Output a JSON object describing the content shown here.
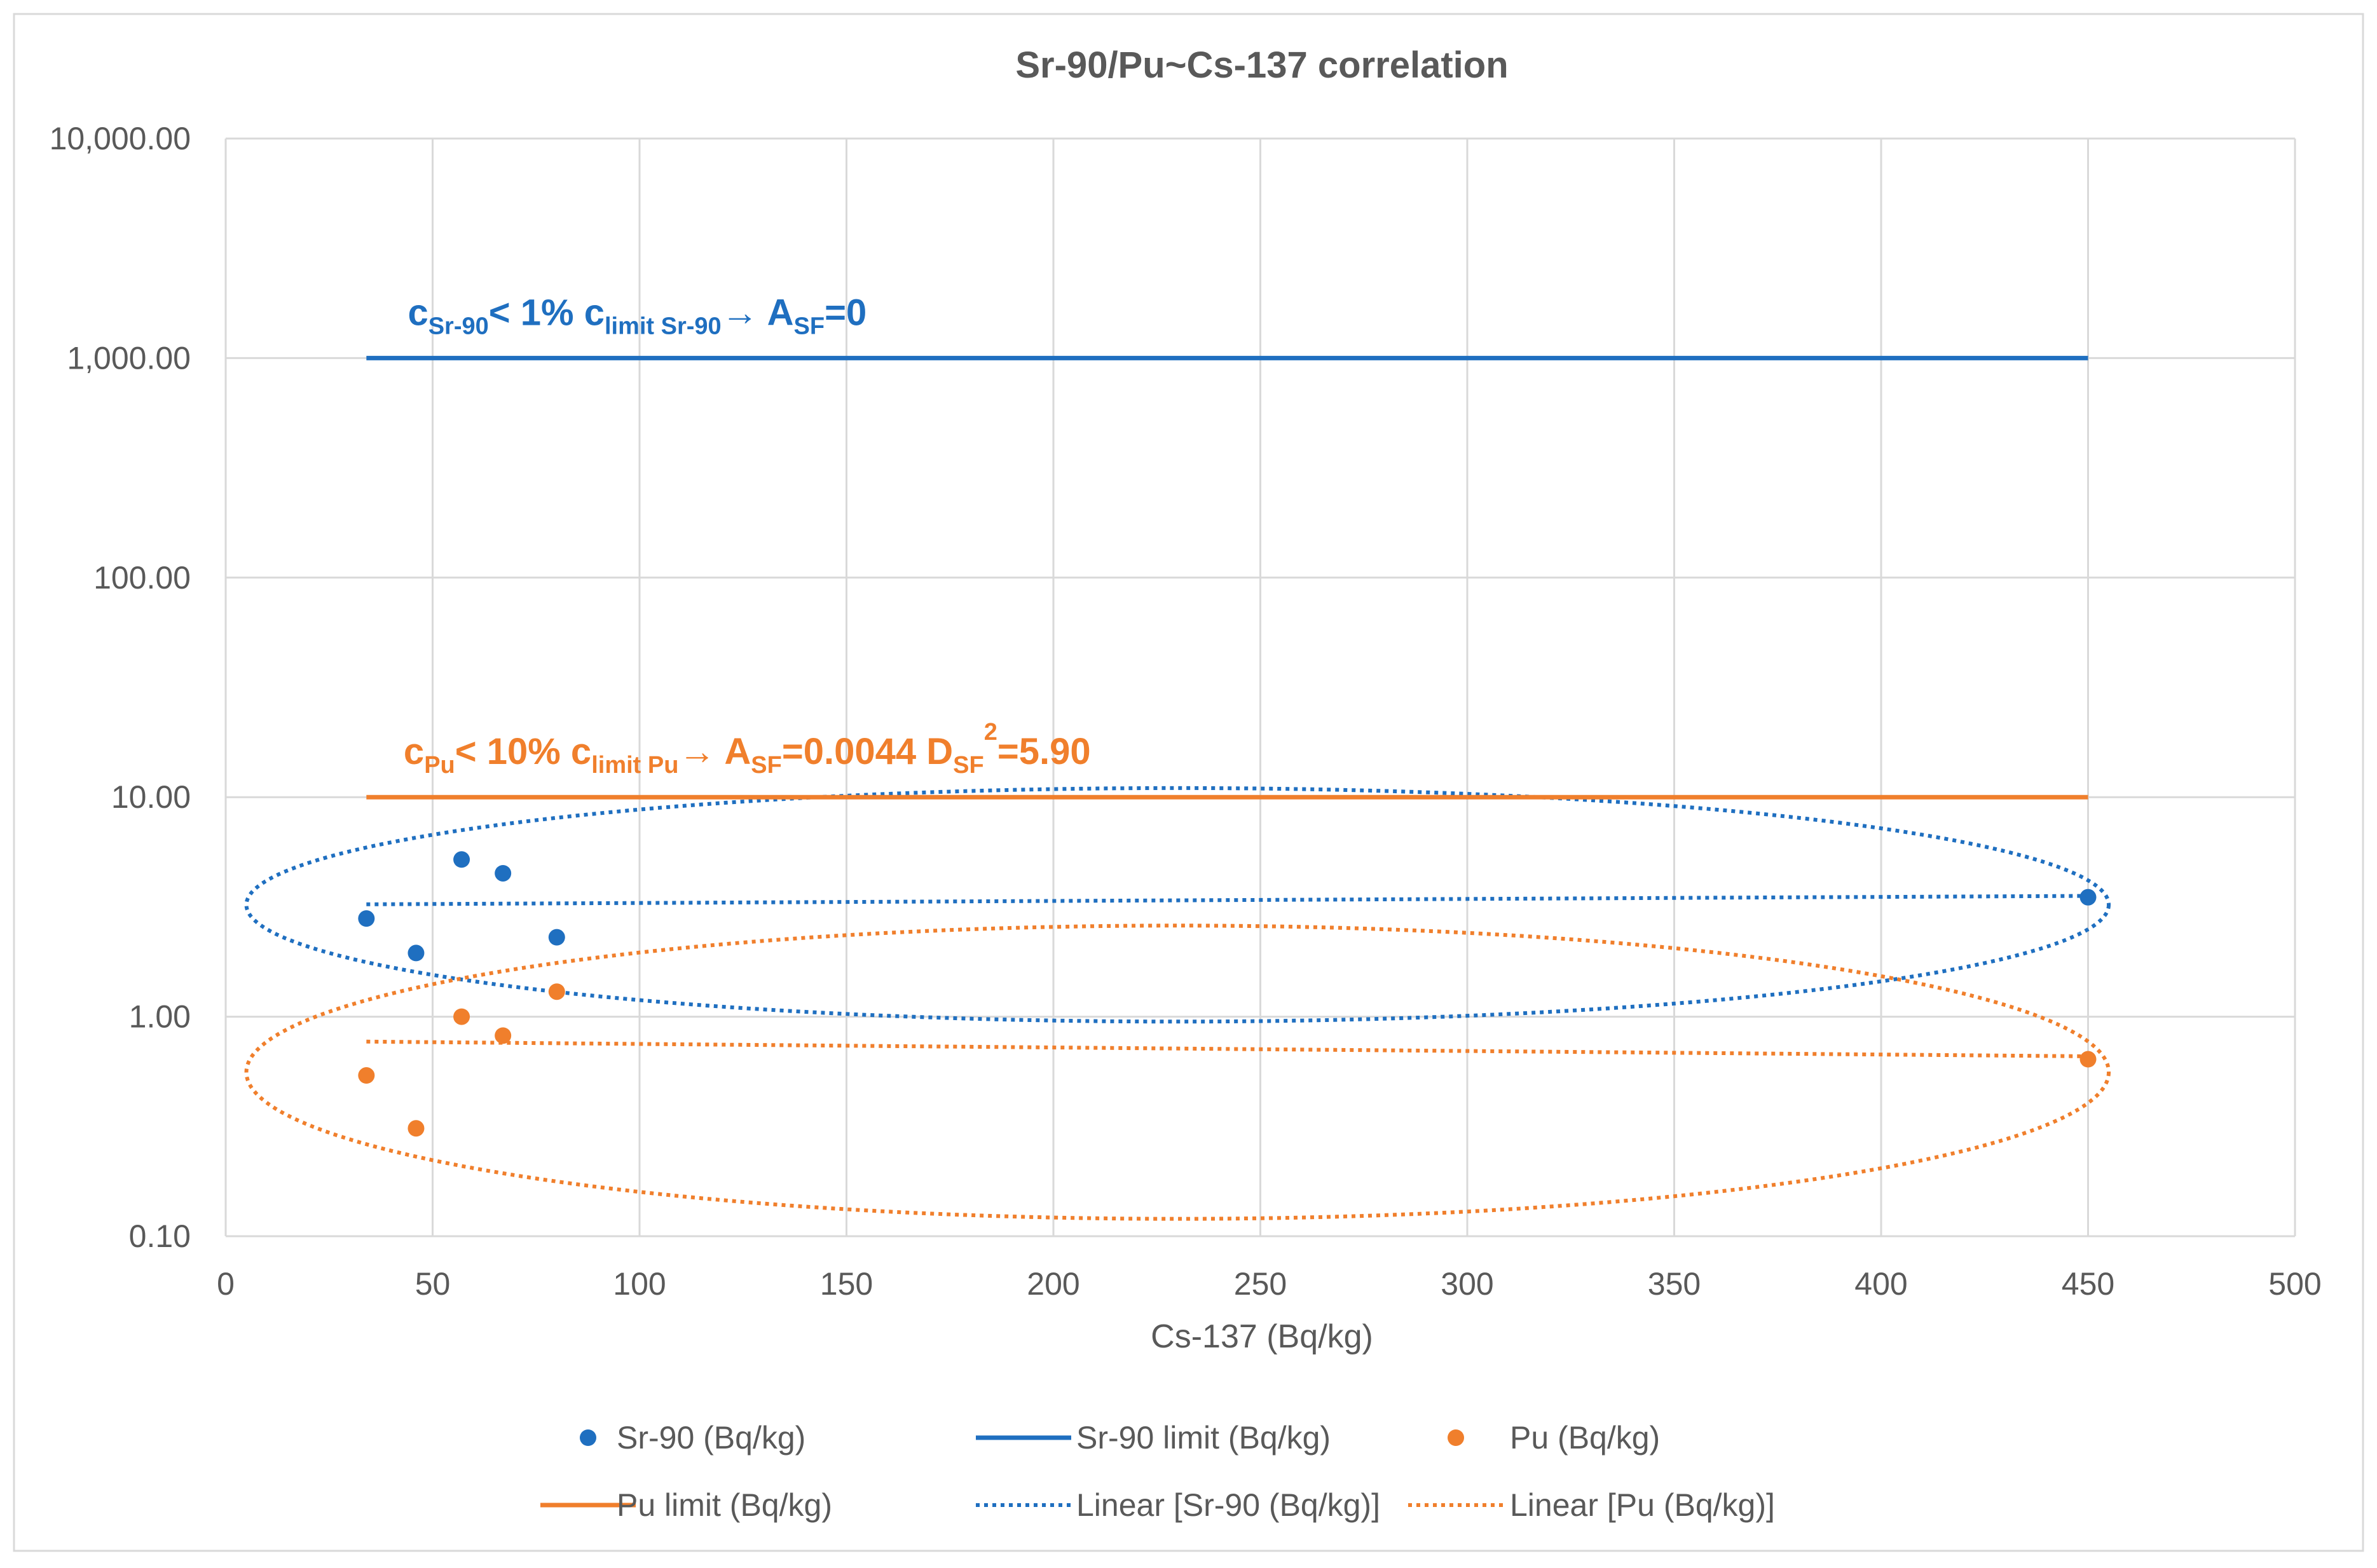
{
  "chart_data": {
    "type": "scatter",
    "title": "Sr-90/Pu~Cs-137 correlation",
    "xlabel": "Cs-137 (Bq/kg)",
    "ylabel": "",
    "xlim": [
      0,
      500
    ],
    "ylim": [
      0.1,
      10000
    ],
    "yscale": "log",
    "grid": true,
    "x_ticks": [
      "0",
      "50",
      "100",
      "150",
      "200",
      "250",
      "300",
      "350",
      "400",
      "450",
      "500"
    ],
    "x_tick_values": [
      0,
      50,
      100,
      150,
      200,
      250,
      300,
      350,
      400,
      450,
      500
    ],
    "y_ticks": [
      "0.10",
      "1.00",
      "10.00",
      "100.00",
      "1,000.00",
      "10,000.00"
    ],
    "y_tick_values": [
      0.1,
      1,
      10,
      100,
      1000,
      10000
    ],
    "colors": {
      "sr": "#1f6fc0",
      "pu": "#f07f2c",
      "grid": "#d9d9d9",
      "text": "#595959"
    },
    "series": [
      {
        "name": "Sr-90 (Bq/kg)",
        "kind": "scatter",
        "color": "#1f6fc0",
        "points": [
          [
            34,
            2.8
          ],
          [
            46,
            1.95
          ],
          [
            57,
            5.2
          ],
          [
            67,
            4.5
          ],
          [
            80,
            2.3
          ],
          [
            450,
            3.5
          ]
        ]
      },
      {
        "name": "Sr-90 limit (Bq/kg)",
        "kind": "line",
        "color": "#1f6fc0",
        "points": [
          [
            34,
            1000
          ],
          [
            450,
            1000
          ]
        ]
      },
      {
        "name": "Pu (Bq/kg)",
        "kind": "scatter",
        "color": "#f07f2c",
        "points": [
          [
            34,
            0.54
          ],
          [
            46,
            0.31
          ],
          [
            57,
            1.0
          ],
          [
            67,
            0.82
          ],
          [
            80,
            1.3
          ],
          [
            450,
            0.64
          ]
        ]
      },
      {
        "name": "Pu limit (Bq/kg)",
        "kind": "line",
        "color": "#f07f2c",
        "points": [
          [
            34,
            10
          ],
          [
            450,
            10
          ]
        ]
      },
      {
        "name": "Linear [Sr-90 (Bq/kg)]",
        "kind": "trend",
        "color": "#1f6fc0",
        "points": [
          [
            34,
            3.25
          ],
          [
            450,
            3.55
          ]
        ]
      },
      {
        "name": "Linear [Pu (Bq/kg)]",
        "kind": "trend",
        "color": "#f07f2c",
        "points": [
          [
            34,
            0.77
          ],
          [
            450,
            0.66
          ]
        ]
      }
    ],
    "legend_order": [
      "Sr-90 (Bq/kg)",
      "Sr-90 limit (Bq/kg)",
      "Pu (Bq/kg)",
      "Pu limit (Bq/kg)",
      "Linear [Sr-90 (Bq/kg)]",
      "Linear [Pu (Bq/kg)]"
    ],
    "legend_position": "bottom",
    "ellipses": [
      {
        "color": "#1f6fc0",
        "cx": 230,
        "cy": 3.3,
        "rx": 225,
        "y_top": 11,
        "y_bottom": 0.95
      },
      {
        "color": "#f07f2c",
        "cx": 230,
        "cy": 0.57,
        "rx": 225,
        "y_top": 2.6,
        "y_bottom": 0.12
      }
    ],
    "annotations": [
      {
        "id": "sr",
        "color": "#1f6fc0",
        "x": 44,
        "y": 1000,
        "parts": [
          {
            "t": "c",
            "s": "n"
          },
          {
            "t": "Sr-90",
            "s": "sub"
          },
          {
            "t": "< 1% c",
            "s": "n"
          },
          {
            "t": "limit Sr-90",
            "s": "sub"
          },
          {
            "t": "→ A",
            "s": "n"
          },
          {
            "t": "SF",
            "s": "sub"
          },
          {
            "t": "=0",
            "s": "n"
          }
        ]
      },
      {
        "id": "pu",
        "color": "#f07f2c",
        "x": 43,
        "y": 10,
        "parts": [
          {
            "t": "c",
            "s": "n"
          },
          {
            "t": "Pu",
            "s": "sub"
          },
          {
            "t": "< 10% c",
            "s": "n"
          },
          {
            "t": "limit Pu",
            "s": "sub"
          },
          {
            "t": "→ A",
            "s": "n"
          },
          {
            "t": "SF",
            "s": "sub"
          },
          {
            "t": "=0.0044 D",
            "s": "n"
          },
          {
            "t": "SF",
            "s": "sub"
          },
          {
            "t": "2",
            "s": "sup"
          },
          {
            "t": "=5.90",
            "s": "n"
          }
        ]
      }
    ]
  }
}
